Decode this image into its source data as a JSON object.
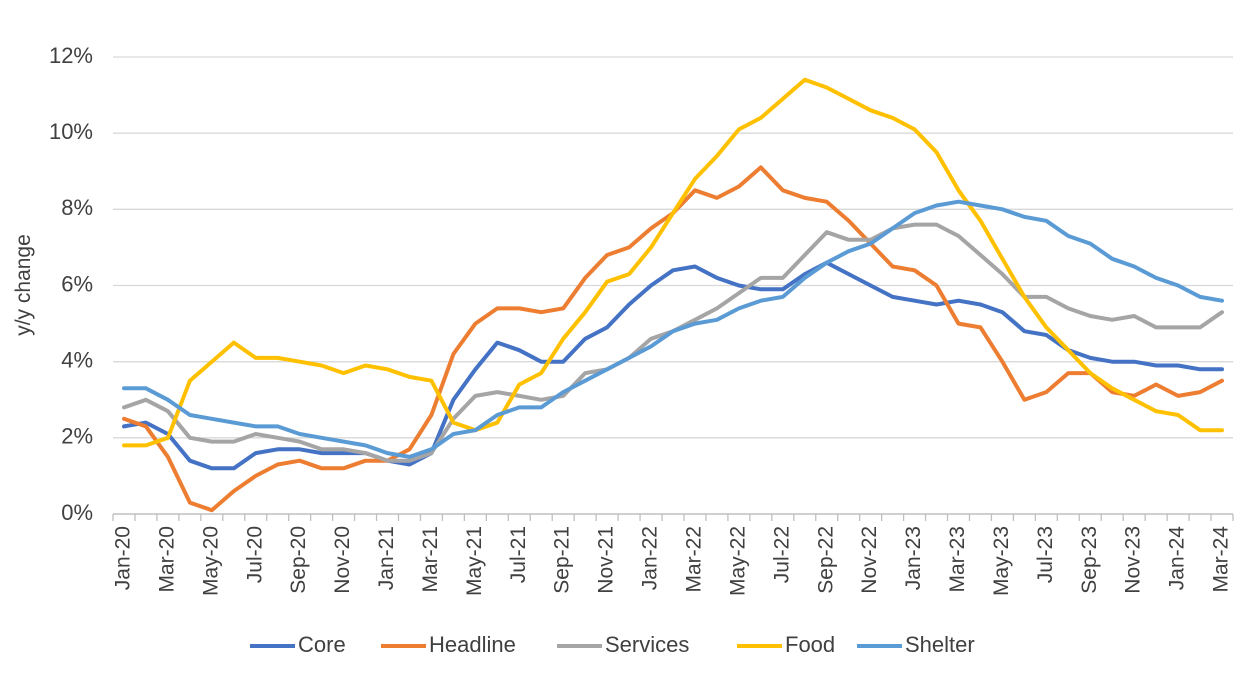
{
  "chart_data": {
    "type": "line",
    "title": "",
    "xlabel": "",
    "ylabel": "y/y change",
    "ylim": [
      0,
      12
    ],
    "y_ticks": [
      "0%",
      "2%",
      "4%",
      "6%",
      "8%",
      "10%",
      "12%"
    ],
    "grid": "horizontal",
    "legend_position": "bottom",
    "x_tick_labels": [
      "Jan-20",
      "Mar-20",
      "May-20",
      "Jul-20",
      "Sep-20",
      "Nov-20",
      "Jan-21",
      "Mar-21",
      "May-21",
      "Jul-21",
      "Sep-21",
      "Nov-21",
      "Jan-22",
      "Mar-22",
      "May-22",
      "Jul-22",
      "Sep-22",
      "Nov-22",
      "Jan-23",
      "Mar-23",
      "May-23",
      "Jul-23",
      "Sep-23",
      "Nov-23",
      "Jan-24",
      "Mar-24"
    ],
    "categories": [
      "Jan-20",
      "Feb-20",
      "Mar-20",
      "Apr-20",
      "May-20",
      "Jun-20",
      "Jul-20",
      "Aug-20",
      "Sep-20",
      "Oct-20",
      "Nov-20",
      "Dec-20",
      "Jan-21",
      "Feb-21",
      "Mar-21",
      "Apr-21",
      "May-21",
      "Jun-21",
      "Jul-21",
      "Aug-21",
      "Sep-21",
      "Oct-21",
      "Nov-21",
      "Dec-21",
      "Jan-22",
      "Feb-22",
      "Mar-22",
      "Apr-22",
      "May-22",
      "Jun-22",
      "Jul-22",
      "Aug-22",
      "Sep-22",
      "Oct-22",
      "Nov-22",
      "Dec-22",
      "Jan-23",
      "Feb-23",
      "Mar-23",
      "Apr-23",
      "May-23",
      "Jun-23",
      "Jul-23",
      "Aug-23",
      "Sep-23",
      "Oct-23",
      "Nov-23",
      "Dec-23",
      "Jan-24",
      "Feb-24",
      "Mar-24"
    ],
    "series": [
      {
        "name": "Core",
        "color": "#4472C4",
        "values": [
          2.3,
          2.4,
          2.1,
          1.4,
          1.2,
          1.2,
          1.6,
          1.7,
          1.7,
          1.6,
          1.6,
          1.6,
          1.4,
          1.3,
          1.6,
          3.0,
          3.8,
          4.5,
          4.3,
          4.0,
          4.0,
          4.6,
          4.9,
          5.5,
          6.0,
          6.4,
          6.5,
          6.2,
          6.0,
          5.9,
          5.9,
          6.3,
          6.6,
          6.3,
          6.0,
          5.7,
          5.6,
          5.5,
          5.6,
          5.5,
          5.3,
          4.8,
          4.7,
          4.3,
          4.1,
          4.0,
          4.0,
          3.9,
          3.9,
          3.8,
          3.8
        ]
      },
      {
        "name": "Headline",
        "color": "#ED7D31",
        "values": [
          2.5,
          2.3,
          1.5,
          0.3,
          0.1,
          0.6,
          1.0,
          1.3,
          1.4,
          1.2,
          1.2,
          1.4,
          1.4,
          1.7,
          2.6,
          4.2,
          5.0,
          5.4,
          5.4,
          5.3,
          5.4,
          6.2,
          6.8,
          7.0,
          7.5,
          7.9,
          8.5,
          8.3,
          8.6,
          9.1,
          8.5,
          8.3,
          8.2,
          7.7,
          7.1,
          6.5,
          6.4,
          6.0,
          5.0,
          4.9,
          4.0,
          3.0,
          3.2,
          3.7,
          3.7,
          3.2,
          3.1,
          3.4,
          3.1,
          3.2,
          3.5
        ]
      },
      {
        "name": "Services",
        "color": "#A5A5A5",
        "values": [
          2.8,
          3.0,
          2.7,
          2.0,
          1.9,
          1.9,
          2.1,
          2.0,
          1.9,
          1.7,
          1.7,
          1.6,
          1.4,
          1.4,
          1.6,
          2.5,
          3.1,
          3.2,
          3.1,
          3.0,
          3.1,
          3.7,
          3.8,
          4.1,
          4.6,
          4.8,
          5.1,
          5.4,
          5.8,
          6.2,
          6.2,
          6.8,
          7.4,
          7.2,
          7.2,
          7.5,
          7.6,
          7.6,
          7.3,
          6.8,
          6.3,
          5.7,
          5.7,
          5.4,
          5.2,
          5.1,
          5.2,
          4.9,
          4.9,
          4.9,
          5.3
        ]
      },
      {
        "name": "Food",
        "color": "#FFC000",
        "values": [
          1.8,
          1.8,
          2.0,
          3.5,
          4.0,
          4.5,
          4.1,
          4.1,
          4.0,
          3.9,
          3.7,
          3.9,
          3.8,
          3.6,
          3.5,
          2.4,
          2.2,
          2.4,
          3.4,
          3.7,
          4.6,
          5.3,
          6.1,
          6.3,
          7.0,
          7.9,
          8.8,
          9.4,
          10.1,
          10.4,
          10.9,
          11.4,
          11.2,
          10.9,
          10.6,
          10.4,
          10.1,
          9.5,
          8.5,
          7.7,
          6.7,
          5.7,
          4.9,
          4.3,
          3.7,
          3.3,
          3.0,
          2.7,
          2.6,
          2.2,
          2.2
        ]
      },
      {
        "name": "Shelter",
        "color": "#5B9BD5",
        "values": [
          3.3,
          3.3,
          3.0,
          2.6,
          2.5,
          2.4,
          2.3,
          2.3,
          2.1,
          2.0,
          1.9,
          1.8,
          1.6,
          1.5,
          1.7,
          2.1,
          2.2,
          2.6,
          2.8,
          2.8,
          3.2,
          3.5,
          3.8,
          4.1,
          4.4,
          4.8,
          5.0,
          5.1,
          5.4,
          5.6,
          5.7,
          6.2,
          6.6,
          6.9,
          7.1,
          7.5,
          7.9,
          8.1,
          8.2,
          8.1,
          8.0,
          7.8,
          7.7,
          7.3,
          7.1,
          6.7,
          6.5,
          6.2,
          6.0,
          5.7,
          5.6
        ]
      }
    ]
  }
}
